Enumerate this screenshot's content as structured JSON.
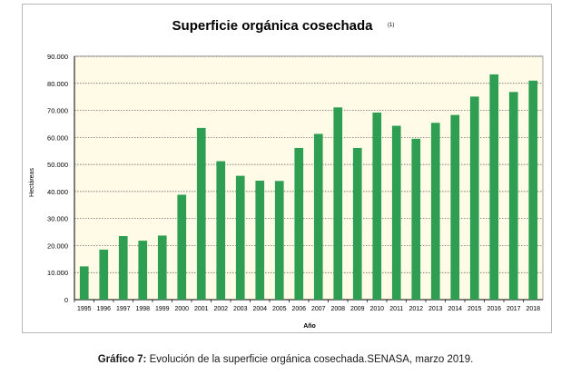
{
  "chart_data": {
    "type": "bar",
    "title": "Superficie orgánica cosechada",
    "title_note": "(1)",
    "xlabel": "Año",
    "ylabel": "Hectáreas",
    "categories": [
      "1995",
      "1996",
      "1997",
      "1998",
      "1999",
      "2000",
      "2001",
      "2002",
      "2003",
      "2004",
      "2005",
      "2006",
      "2007",
      "2008",
      "2009",
      "2010",
      "2011",
      "2012",
      "2013",
      "2014",
      "2015",
      "2016",
      "2017",
      "2018"
    ],
    "values": [
      12300,
      18500,
      23500,
      21800,
      23700,
      38800,
      63500,
      51200,
      45800,
      44000,
      43900,
      56100,
      61300,
      71100,
      56100,
      69200,
      64300,
      59500,
      65400,
      68300,
      75100,
      83300,
      76800,
      81000
    ],
    "ylim": [
      0,
      90000
    ],
    "yticks": [
      0,
      10000,
      20000,
      30000,
      40000,
      50000,
      60000,
      70000,
      80000,
      90000
    ],
    "ytick_labels": [
      "0",
      "10.000",
      "20.000",
      "30.000",
      "40.000",
      "50.000",
      "60.000",
      "70.000",
      "80.000",
      "90.000"
    ],
    "grid": true,
    "colors": {
      "bar": "#2e9e52",
      "plot_background": "#fffbe6",
      "grid": "#555555"
    }
  },
  "caption": {
    "label": "Gráfico 7:",
    "text": " Evolución de la superficie orgánica cosechada.SENASA, marzo 2019."
  }
}
